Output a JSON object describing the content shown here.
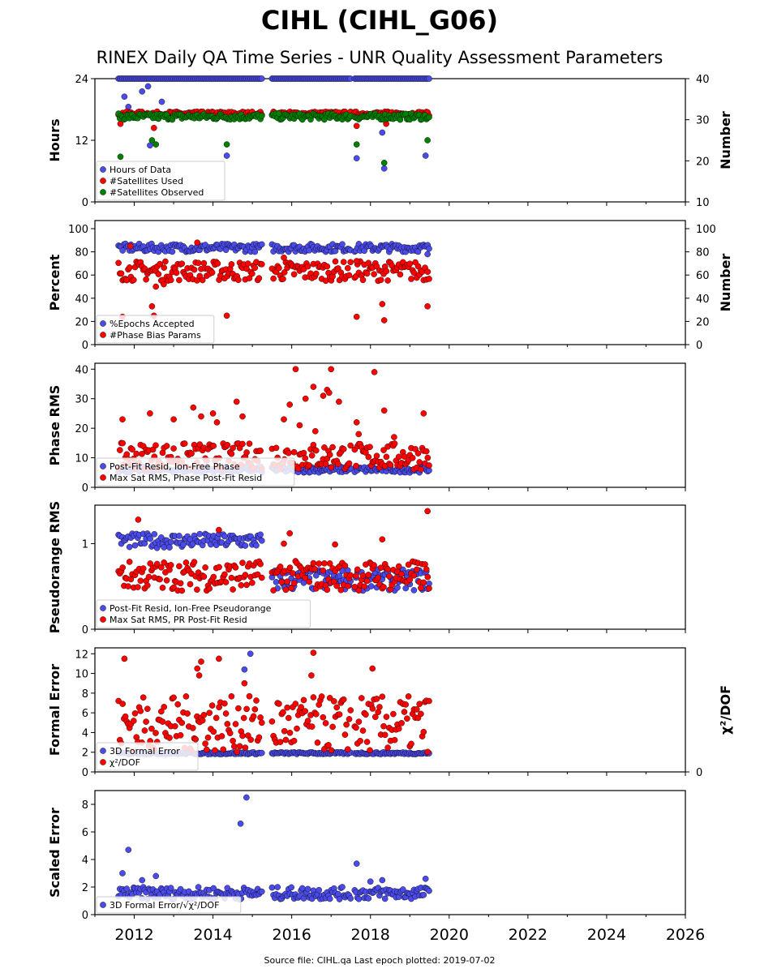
{
  "title": "CIHL (CIHL_G06)",
  "subtitle": "RINEX Daily QA Time Series - UNR Quality Assessment Parameters",
  "source_note": "Source file: CIHL.qa Last epoch plotted: 2019-07-02",
  "colors": {
    "blue": "#4b4bea",
    "red": "#ff0000",
    "green": "#008000"
  },
  "chart_data": [
    {
      "type": "scatter",
      "ylabel": "Hours",
      "ylabel_right": "Number",
      "xlim": [
        2011,
        2026
      ],
      "ylim": [
        0,
        24
      ],
      "ylim_right": [
        10,
        40
      ],
      "yticks": [
        "0",
        "12",
        "24"
      ],
      "yticks_right": [
        "10",
        "20",
        "30",
        "40"
      ],
      "legend": [
        "Hours of Data",
        "#Satellites Used",
        "#Satellites Observed"
      ],
      "series": [
        {
          "name": "Hours of Data",
          "color": "blue",
          "axis": "left",
          "band": [
            24,
            24
          ],
          "outliers": [
            [
              2011.75,
              20.5
            ],
            [
              2011.85,
              18.5
            ],
            [
              2012.2,
              21.5
            ],
            [
              2012.35,
              22.5
            ],
            [
              2012.4,
              11
            ],
            [
              2012.7,
              19.5
            ],
            [
              2014.35,
              9
            ],
            [
              2017.65,
              8.5
            ],
            [
              2018.3,
              13.5
            ],
            [
              2018.35,
              6.5
            ],
            [
              2019.4,
              9
            ]
          ]
        },
        {
          "name": "#Satellites Used",
          "color": "red",
          "axis": "right",
          "band": [
            31,
            32
          ],
          "outliers": [
            [
              2011.65,
              29
            ],
            [
              2012.5,
              28
            ],
            [
              2017.65,
              28.5
            ],
            [
              2018.4,
              29
            ]
          ]
        },
        {
          "name": "#Satellites Observed",
          "color": "green",
          "axis": "right",
          "band": [
            30,
            31.5
          ],
          "outliers": [
            [
              2011.65,
              21
            ],
            [
              2012.45,
              25
            ],
            [
              2012.55,
              24
            ],
            [
              2014.35,
              24
            ],
            [
              2017.65,
              24
            ],
            [
              2018.35,
              19.5
            ],
            [
              2019.45,
              25
            ]
          ]
        }
      ]
    },
    {
      "type": "scatter",
      "ylabel": "Percent",
      "ylabel_right": "Number",
      "xlim": [
        2011,
        2026
      ],
      "ylim": [
        0,
        107
      ],
      "yticks": [
        "0",
        "20",
        "40",
        "60",
        "80",
        "100"
      ],
      "yticks_right": [
        "0",
        "20",
        "40",
        "60",
        "80",
        "100"
      ],
      "legend": [
        "%Epochs Accepted",
        "#Phase Bias Params"
      ],
      "series": [
        {
          "name": "%Epochs Accepted",
          "color": "blue",
          "band": [
            80,
            87
          ],
          "outliers": [
            [
              2019.45,
              78
            ]
          ]
        },
        {
          "name": "#Phase Bias Params",
          "color": "red",
          "band": [
            55,
            72
          ],
          "outliers": [
            [
              2011.7,
              24
            ],
            [
              2012.45,
              33
            ],
            [
              2012.5,
              25
            ],
            [
              2012.55,
              50
            ],
            [
              2012.75,
              52
            ],
            [
              2014.35,
              25
            ],
            [
              2017.65,
              24
            ],
            [
              2018.3,
              35
            ],
            [
              2018.35,
              21
            ],
            [
              2019.45,
              33
            ],
            [
              2011.9,
              85
            ],
            [
              2013.6,
              88
            ],
            [
              2015.8,
              75
            ],
            [
              2017.65,
              72
            ]
          ]
        }
      ]
    },
    {
      "type": "scatter",
      "ylabel": "Phase RMS",
      "xlim": [
        2011,
        2026
      ],
      "ylim": [
        0,
        42
      ],
      "yticks": [
        "0",
        "10",
        "20",
        "30",
        "40"
      ],
      "legend": [
        "Post-Fit Resid, Ion-Free Phase",
        "Max Sat RMS, Phase Post-Fit Resid"
      ],
      "series": [
        {
          "name": "Post-Fit Resid, Ion-Free Phase",
          "color": "blue",
          "band": [
            5,
            7
          ],
          "outliers": []
        },
        {
          "name": "Max Sat RMS, Phase Post-Fit Resid",
          "color": "red",
          "band": [
            6,
            15
          ],
          "outliers": [
            [
              2011.7,
              23
            ],
            [
              2012.4,
              25
            ],
            [
              2013.0,
              23
            ],
            [
              2013.5,
              27
            ],
            [
              2013.7,
              24
            ],
            [
              2014.0,
              25
            ],
            [
              2014.1,
              22
            ],
            [
              2014.6,
              29
            ],
            [
              2014.75,
              24
            ],
            [
              2015.8,
              23
            ],
            [
              2015.95,
              28
            ],
            [
              2016.1,
              40
            ],
            [
              2016.2,
              21
            ],
            [
              2016.35,
              30
            ],
            [
              2016.55,
              34
            ],
            [
              2016.6,
              19
            ],
            [
              2016.8,
              31
            ],
            [
              2016.9,
              33
            ],
            [
              2016.95,
              32
            ],
            [
              2017.0,
              40
            ],
            [
              2017.2,
              29
            ],
            [
              2017.65,
              22
            ],
            [
              2017.7,
              18
            ],
            [
              2018.1,
              39
            ],
            [
              2018.35,
              26
            ],
            [
              2018.6,
              17
            ],
            [
              2019.35,
              25
            ]
          ]
        }
      ]
    },
    {
      "type": "scatter",
      "ylabel": "Pseudorange RMS",
      "xlim": [
        2011,
        2026
      ],
      "ylim": [
        0,
        1.45
      ],
      "yticks": [
        "0",
        "1"
      ],
      "legend": [
        "Post-Fit Resid, Ion-Free Pseudorange",
        "Max Sat RMS, PR Post-Fit Resid"
      ],
      "series": [
        {
          "name": "Post-Fit Resid, Ion-Free Pseudorange",
          "color": "blue",
          "band": [
            0.95,
            1.12
          ],
          "band_after_2015_5": [
            0.45,
            0.7
          ],
          "outliers": []
        },
        {
          "name": "Max Sat RMS, PR Post-Fit Resid",
          "color": "red",
          "band": [
            0.45,
            0.8
          ],
          "outliers": [
            [
              2012.1,
              1.28
            ],
            [
              2014.15,
              1.16
            ],
            [
              2015.8,
              1.0
            ],
            [
              2015.95,
              1.12
            ],
            [
              2017.1,
              0.99
            ],
            [
              2018.3,
              1.05
            ],
            [
              2019.45,
              1.38
            ]
          ]
        }
      ]
    },
    {
      "type": "scatter",
      "ylabel": "Formal Error",
      "ylabel_right": "χ²/DOF",
      "xlim": [
        2011,
        2026
      ],
      "ylim": [
        0,
        12.6
      ],
      "yticks": [
        "0",
        "2",
        "4",
        "6",
        "8",
        "10",
        "12"
      ],
      "yticks_right": [
        "0"
      ],
      "legend": [
        "3D Formal Error",
        "χ²/DOF"
      ],
      "series": [
        {
          "name": "3D Formal Error",
          "color": "blue",
          "band": [
            1.8,
            2.0
          ],
          "outliers": [
            [
              2014.8,
              10.4
            ],
            [
              2014.95,
              12
            ]
          ]
        },
        {
          "name": "χ²/DOF",
          "color": "red",
          "band": [
            2,
            7.7
          ],
          "outliers": [
            [
              2011.75,
              11.5
            ],
            [
              2013.6,
              10.5
            ],
            [
              2013.7,
              11.2
            ],
            [
              2013.65,
              9.8
            ],
            [
              2014.15,
              11.5
            ],
            [
              2014.8,
              9.0
            ],
            [
              2016.55,
              12.1
            ],
            [
              2016.5,
              9.8
            ],
            [
              2018.05,
              10.5
            ]
          ]
        }
      ]
    },
    {
      "type": "scatter",
      "ylabel": "Scaled Error",
      "xlim": [
        2011,
        2026
      ],
      "ylim": [
        0,
        9
      ],
      "yticks": [
        "0",
        "2",
        "4",
        "6",
        "8"
      ],
      "xticks": [
        "2012",
        "2014",
        "2016",
        "2018",
        "2020",
        "2022",
        "2024",
        "2026"
      ],
      "legend": [
        "3D Formal Error/√χ²/DOF"
      ],
      "series": [
        {
          "name": "3D Formal Error/√χ²/DOF",
          "color": "blue",
          "band": [
            1.1,
            2.0
          ],
          "outliers": [
            [
              2011.7,
              3.0
            ],
            [
              2011.85,
              4.7
            ],
            [
              2012.2,
              2.5
            ],
            [
              2012.55,
              2.8
            ],
            [
              2014.7,
              6.6
            ],
            [
              2014.85,
              8.5
            ],
            [
              2017.65,
              3.7
            ],
            [
              2018.0,
              2.4
            ],
            [
              2018.3,
              2.5
            ],
            [
              2019.4,
              2.6
            ]
          ]
        }
      ]
    }
  ]
}
